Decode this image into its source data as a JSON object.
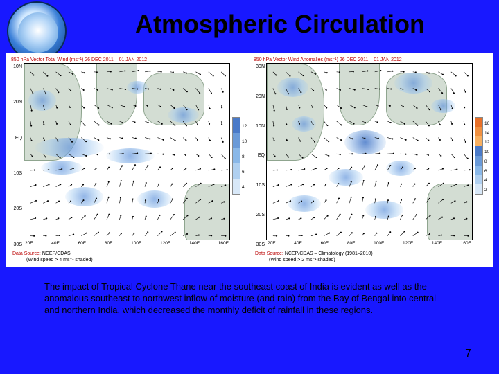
{
  "title": "Atmospheric Circulation",
  "page_number": "7",
  "caption": "The impact of Tropical Cyclone Thane near the southeast coast of India is evident as well as the anomalous southeast to northwest inflow of moisture (and rain) from the Bay of Bengal into central and northern India, which decreased  the monthly deficit of rainfall in these regions.",
  "background_color": "#1818ff",
  "panel_left": {
    "title": "850 hPa Vector Total Wind (ms⁻¹) 26 DEC 2011 – 01 JAN 2012",
    "y_ticks": [
      "10N",
      "20N",
      "EQ",
      "10S",
      "20S",
      "30S"
    ],
    "x_ticks": [
      "20E",
      "40E",
      "60E",
      "80E",
      "100E",
      "120E",
      "140E",
      "160E"
    ],
    "data_source_label": "Data Source:",
    "data_source_value": "NCEP/CDAS",
    "data_source_line2": "(Wind speed > 4 ms⁻¹ shaded)",
    "legend_values": [
      "12",
      "10",
      "8",
      "6",
      "4"
    ],
    "legend_colors": [
      "#4a7ac8",
      "#6a9ad8",
      "#8ab8e8",
      "#b0d0f0",
      "#d8e8f8"
    ]
  },
  "panel_right": {
    "title": "850 hPa Vector Wind Anomalies (ms⁻¹) 26 DEC 2011 – 01 JAN 2012",
    "y_ticks": [
      "30N",
      "20N",
      "10N",
      "EQ",
      "10S",
      "20S",
      "30S"
    ],
    "x_ticks": [
      "20E",
      "40E",
      "60E",
      "80E",
      "100E",
      "120E",
      "140E",
      "160E"
    ],
    "data_source_label": "Data Source:",
    "data_source_value": "NCEP/CDAS – Climatology (1981–2010)",
    "data_source_line2": "(Wind speed > 2 ms⁻¹ shaded)",
    "legend_values": [
      "16",
      "14",
      "12",
      "10",
      "8",
      "6",
      "4",
      "2"
    ],
    "legend_colors": [
      "#e87028",
      "#f09040",
      "#f8b060",
      "#4a7ac8",
      "#6a9ad8",
      "#8ab8e8",
      "#b0d0f0",
      "#d8e8f8"
    ]
  }
}
